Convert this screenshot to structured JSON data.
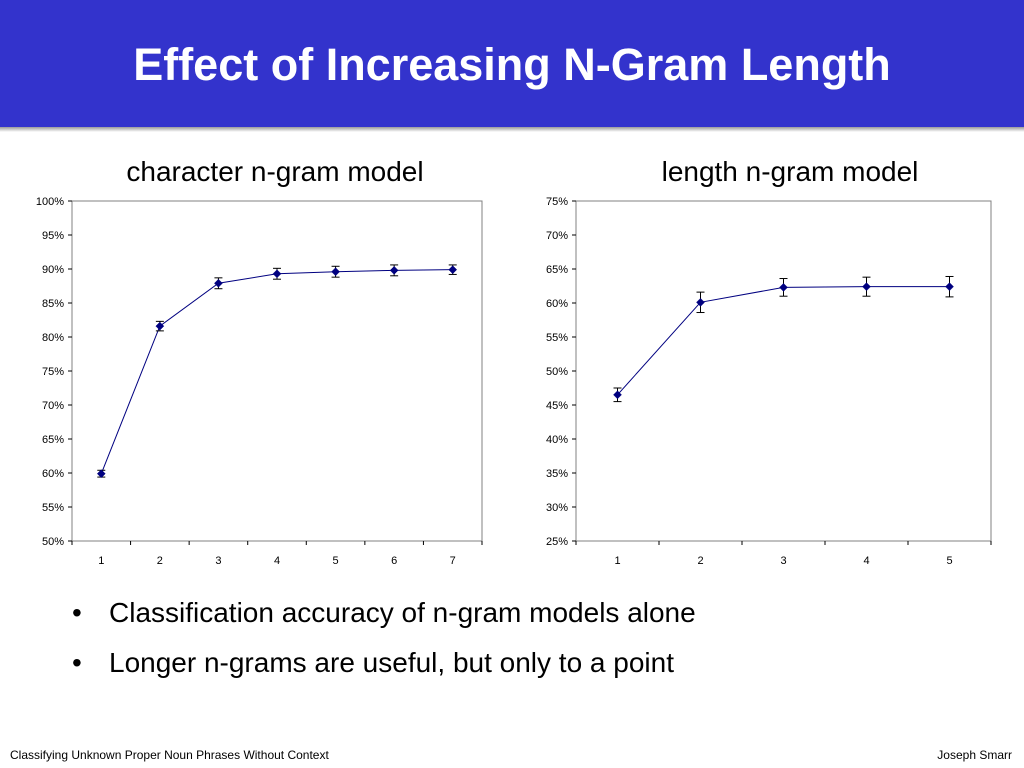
{
  "slide": {
    "title": "Effect of Increasing N-Gram Length",
    "bullets": [
      "Classification accuracy of n-gram models alone",
      "Longer n-grams are useful, but only to a point"
    ],
    "bullet_symbol": "•",
    "footer_left": "Classifying Unknown Proper Noun Phrases Without Context",
    "footer_right": "Joseph Smarr",
    "colors": {
      "title_bar": "#3333cc",
      "title_text": "#ffffff",
      "series": "#000080"
    }
  },
  "chart_data": [
    {
      "type": "line",
      "title": "character n-gram model",
      "xlabel": "",
      "ylabel": "",
      "x": [
        1,
        2,
        3,
        4,
        5,
        6,
        7
      ],
      "series": [
        {
          "values": [
            59.9,
            81.6,
            87.9,
            89.3,
            89.6,
            89.8,
            89.9
          ],
          "errors": [
            0.5,
            0.7,
            0.8,
            0.8,
            0.8,
            0.8,
            0.7
          ]
        }
      ],
      "ylim": [
        50,
        100
      ],
      "yticks": [
        "50%",
        "55%",
        "60%",
        "65%",
        "70%",
        "75%",
        "80%",
        "85%",
        "90%",
        "95%",
        "100%"
      ],
      "grid": false,
      "marker": "diamond"
    },
    {
      "type": "line",
      "title": "length n-gram model",
      "xlabel": "",
      "ylabel": "",
      "x": [
        1,
        2,
        3,
        4,
        5
      ],
      "series": [
        {
          "values": [
            46.5,
            60.1,
            62.3,
            62.4,
            62.4
          ],
          "errors": [
            1.0,
            1.5,
            1.3,
            1.4,
            1.5
          ]
        }
      ],
      "ylim": [
        25,
        75
      ],
      "yticks": [
        "25%",
        "30%",
        "35%",
        "40%",
        "45%",
        "50%",
        "55%",
        "60%",
        "65%",
        "70%",
        "75%"
      ],
      "grid": false,
      "marker": "diamond"
    }
  ]
}
